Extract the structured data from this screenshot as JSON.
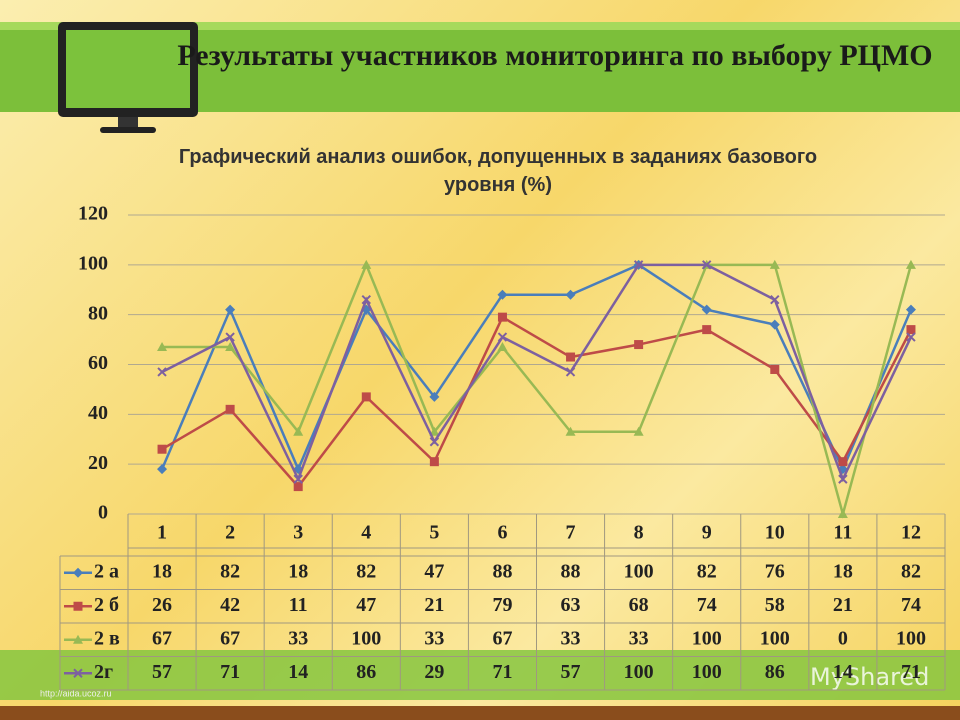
{
  "slide_title": "Результаты участников мониторинга по выбору РЦМО",
  "footer": "http://aida.ucoz.ru",
  "watermark": "MyShared",
  "chart_data": {
    "type": "line",
    "title": "Графический анализ ошибок, допущенных в заданиях базового уровня (%)",
    "categories": [
      "1",
      "2",
      "3",
      "4",
      "5",
      "6",
      "7",
      "8",
      "9",
      "10",
      "11",
      "12"
    ],
    "ylim": [
      0,
      120
    ],
    "yticks": [
      0,
      20,
      40,
      60,
      80,
      100,
      120
    ],
    "grid": true,
    "series": [
      {
        "name": "2 а",
        "color": "#4a7ebb",
        "marker": "diamond",
        "values": [
          18,
          82,
          18,
          82,
          47,
          88,
          88,
          100,
          82,
          76,
          18,
          82
        ]
      },
      {
        "name": "2 б",
        "color": "#be4b48",
        "marker": "square",
        "values": [
          26,
          42,
          11,
          47,
          21,
          79,
          63,
          68,
          74,
          58,
          21,
          74
        ]
      },
      {
        "name": "2 в",
        "color": "#98b954",
        "marker": "triangle",
        "values": [
          67,
          67,
          33,
          100,
          33,
          67,
          33,
          33,
          100,
          100,
          0,
          100
        ]
      },
      {
        "name": "2г",
        "color": "#7d60a0",
        "marker": "x",
        "values": [
          57,
          71,
          14,
          86,
          29,
          71,
          57,
          100,
          100,
          86,
          14,
          71
        ]
      }
    ]
  }
}
